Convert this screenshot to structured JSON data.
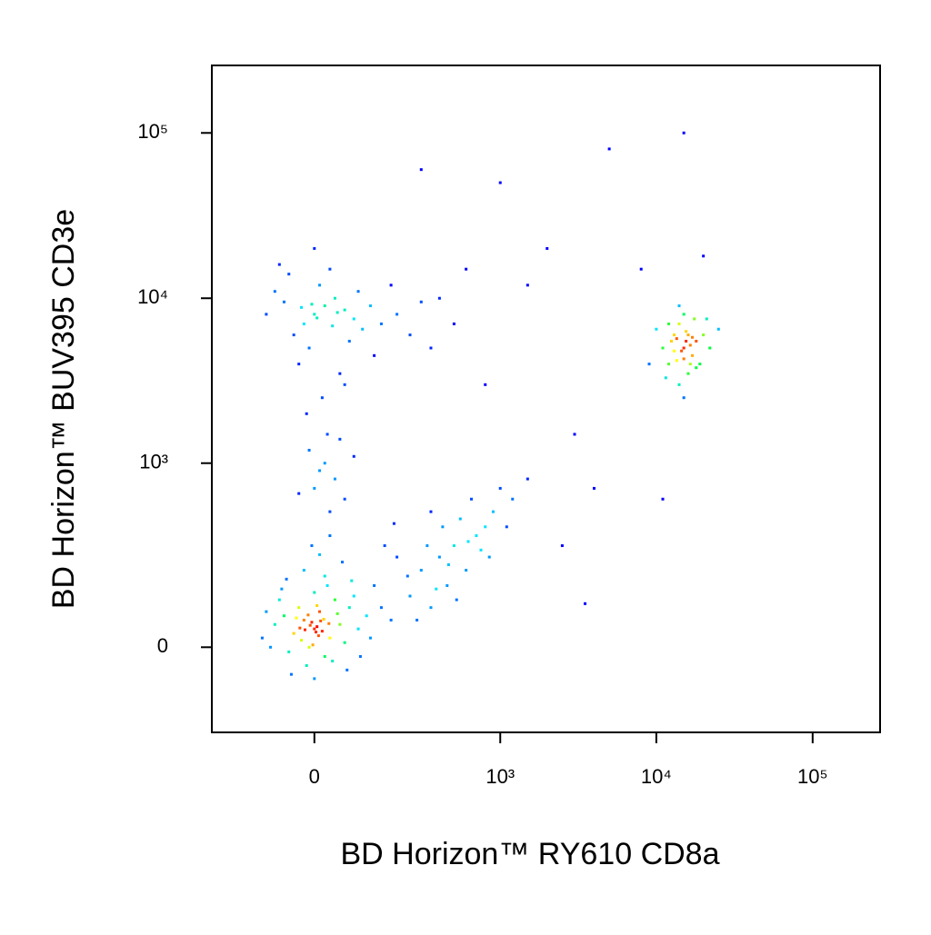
{
  "chart_data": {
    "type": "scatter",
    "x_label": "BD Horizon™ RY610 CD8a",
    "y_label": "BD Horizon™ BUV395 CD3e",
    "xscale": "biexponential",
    "yscale": "biexponential",
    "xlim": [
      -280,
      270000
    ],
    "ylim": [
      -230,
      256000
    ],
    "xticks": [
      0,
      {
        "value": 1000,
        "label": "10³"
      },
      {
        "value": 10000,
        "label": "10⁴"
      },
      {
        "value": 100000,
        "label": "10⁵"
      }
    ],
    "yticks": [
      0,
      {
        "value": 1000,
        "label": "10³"
      },
      {
        "value": 10000,
        "label": "10⁴"
      },
      {
        "value": 100000,
        "label": "10⁵"
      }
    ],
    "grid": false,
    "colormap": [
      "#0000ff",
      "#00e5ff",
      "#00ff40",
      "#ffff00",
      "#ff0000"
    ],
    "x": [
      0,
      -20,
      30,
      10,
      -40,
      50,
      -10,
      20,
      -60,
      70,
      5,
      -5,
      15,
      -25,
      40,
      -30,
      60,
      -50,
      90,
      -80,
      0,
      25,
      -15,
      35,
      80,
      -70,
      110,
      -90,
      120,
      45,
      -35,
      8,
      -8,
      18,
      -18,
      28,
      -28,
      3,
      12,
      -12,
      150,
      180,
      -100,
      -110,
      65,
      -45,
      0,
      20,
      -20,
      55,
      -55,
      10,
      -5,
      30,
      130,
      95,
      -65,
      75,
      5,
      -3,
      250,
      300,
      350,
      400,
      450,
      500,
      600,
      700,
      800,
      900,
      200,
      280,
      330,
      420,
      550,
      650,
      750,
      1000,
      1200,
      1500,
      240,
      380,
      460,
      520,
      620,
      850,
      1100,
      160,
      190,
      350,
      0,
      20,
      -20,
      40,
      -40,
      60,
      -60,
      10,
      -10,
      80,
      100,
      -80,
      30,
      -30,
      50,
      120,
      150,
      200,
      250,
      300,
      0,
      -50,
      15,
      -15,
      25,
      70,
      90,
      -100,
      35,
      -25,
      5,
      45,
      -5,
      180,
      350,
      400,
      500,
      130,
      60,
      -70,
      20,
      0,
      40,
      -10,
      60,
      30,
      10,
      -30,
      80,
      50,
      15000,
      13000,
      17000,
      12000,
      18000,
      14000,
      16000,
      11000,
      20000,
      15500,
      14500,
      16500,
      13500,
      19000,
      10000,
      22000,
      15000,
      14000,
      17500,
      12500,
      16000,
      15000,
      13000,
      18000,
      25000,
      9000,
      11500,
      21000,
      15000,
      14000,
      16500,
      13500,
      15500,
      12000,
      17000,
      5000,
      15000,
      300,
      1000,
      2000,
      3000,
      4000,
      8000,
      20000,
      1500,
      800,
      600,
      2500,
      3500,
      11000
    ],
    "y": [
      40,
      60,
      20,
      80,
      30,
      50,
      0,
      -20,
      70,
      90,
      45,
      55,
      35,
      15,
      110,
      90,
      10,
      -10,
      40,
      50,
      130,
      150,
      -40,
      -30,
      120,
      110,
      70,
      0,
      20,
      75,
      65,
      25,
      48,
      62,
      38,
      52,
      42,
      33,
      58,
      72,
      90,
      60,
      80,
      20,
      -50,
      -60,
      -70,
      180,
      200,
      230,
      170,
      260,
      300,
      350,
      150,
      -20,
      140,
      165,
      95,
      5,
      120,
      200,
      90,
      250,
      150,
      300,
      200,
      350,
      400,
      500,
      250,
      60,
      300,
      400,
      450,
      600,
      280,
      700,
      600,
      800,
      180,
      140,
      220,
      110,
      320,
      250,
      400,
      300,
      420,
      500,
      8000,
      9000,
      7000,
      10000,
      6000,
      8500,
      9500,
      12000,
      5000,
      7500,
      6500,
      11000,
      15000,
      4000,
      3500,
      9000,
      7000,
      8000,
      6000,
      9500,
      20000,
      14000,
      2500,
      2000,
      1500,
      5500,
      11000,
      8000,
      6800,
      8800,
      7600,
      8200,
      9200,
      12000,
      5000,
      10000,
      7000,
      4500,
      3000,
      16000,
      1000,
      700,
      800,
      1200,
      600,
      500,
      900,
      650,
      1100,
      1400,
      5000,
      6000,
      4500,
      4000,
      5500,
      7000,
      3500,
      5000,
      6000,
      5500,
      4800,
      5200,
      4200,
      4000,
      6500,
      5000,
      8000,
      3000,
      7500,
      5500,
      6000,
      4300,
      4800,
      3800,
      6500,
      4000,
      3300,
      7500,
      2500,
      9000,
      4000,
      5700,
      6300,
      7000,
      5800,
      80000,
      100000,
      60000,
      50000,
      20000,
      1500,
      700,
      15000,
      18000,
      12000,
      3000,
      15000,
      300,
      100,
      600
    ]
  }
}
